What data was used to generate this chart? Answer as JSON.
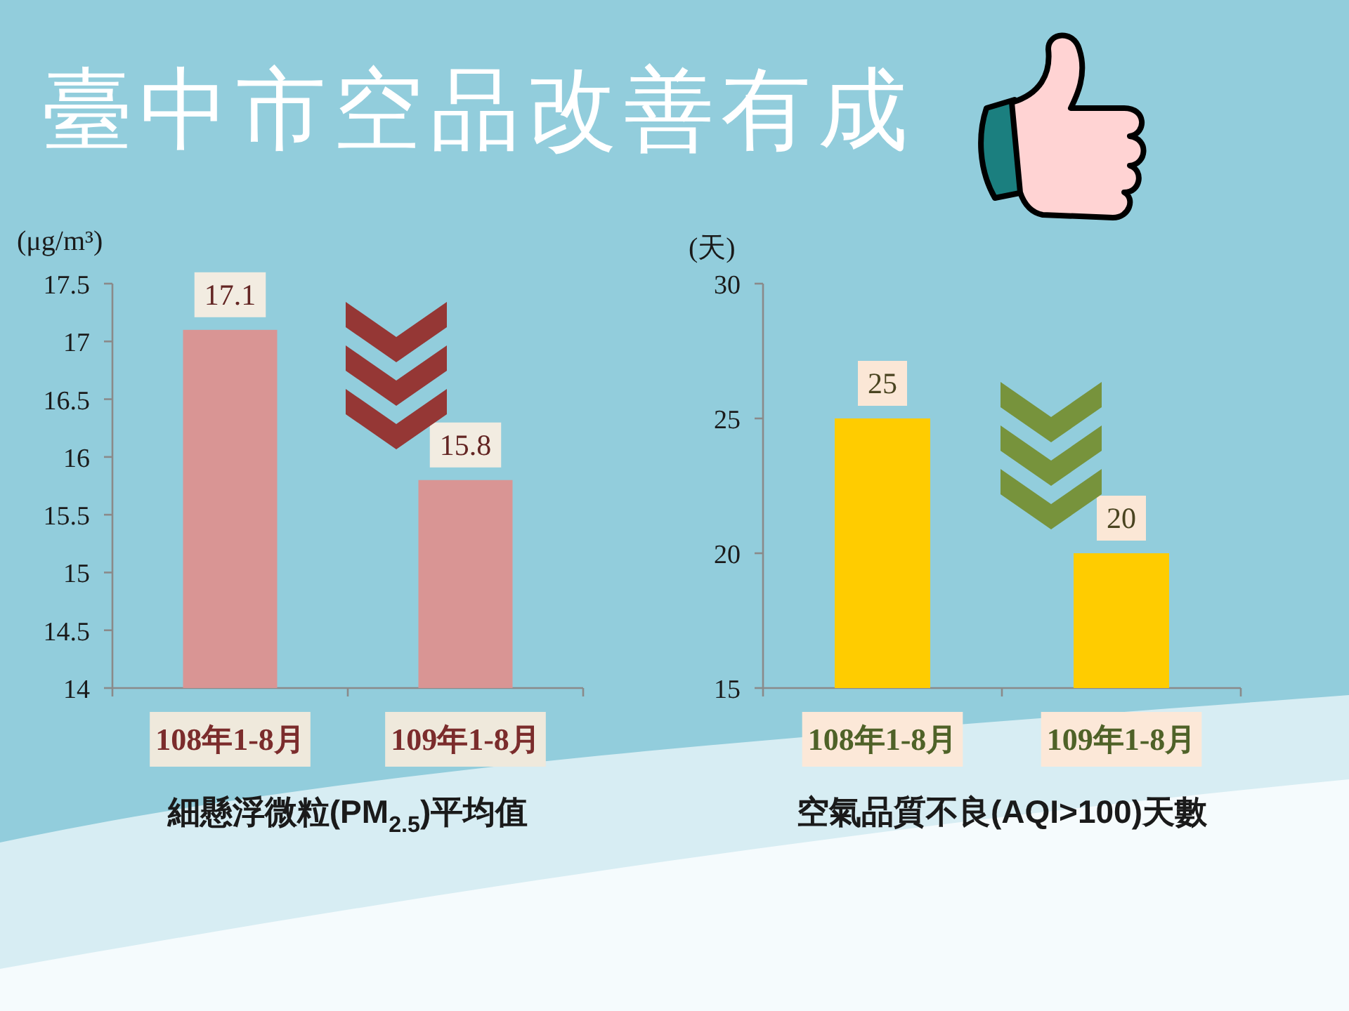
{
  "chart_data": [
    {
      "type": "other",
      "title": "臺中市空品改善有成"
    },
    {
      "type": "bar",
      "xlabel": "細懸浮微粒(PM$_{2.5}$)平均值",
      "ylabel": "(μg/m³)",
      "categories": [
        "108年1-8月",
        "109年1-8月"
      ],
      "values": [
        17.1,
        15.8
      ],
      "color": "#d99594",
      "ylim": [
        14,
        17.5
      ],
      "yticks": [
        14,
        14.5,
        15,
        15.5,
        16,
        16.5,
        17,
        17.5
      ],
      "data_labels": true
    },
    {
      "type": "bar",
      "xlabel": "空氣品質不良(AQI>100)天數",
      "ylabel": "(天)",
      "categories": [
        "108年1-8月",
        "109年1-8月"
      ],
      "values": [
        25,
        20
      ],
      "color": "#ffcc00",
      "ylim": [
        15,
        30
      ],
      "yticks": [
        15,
        20,
        25,
        30
      ],
      "data_labels": true
    }
  ]
}
